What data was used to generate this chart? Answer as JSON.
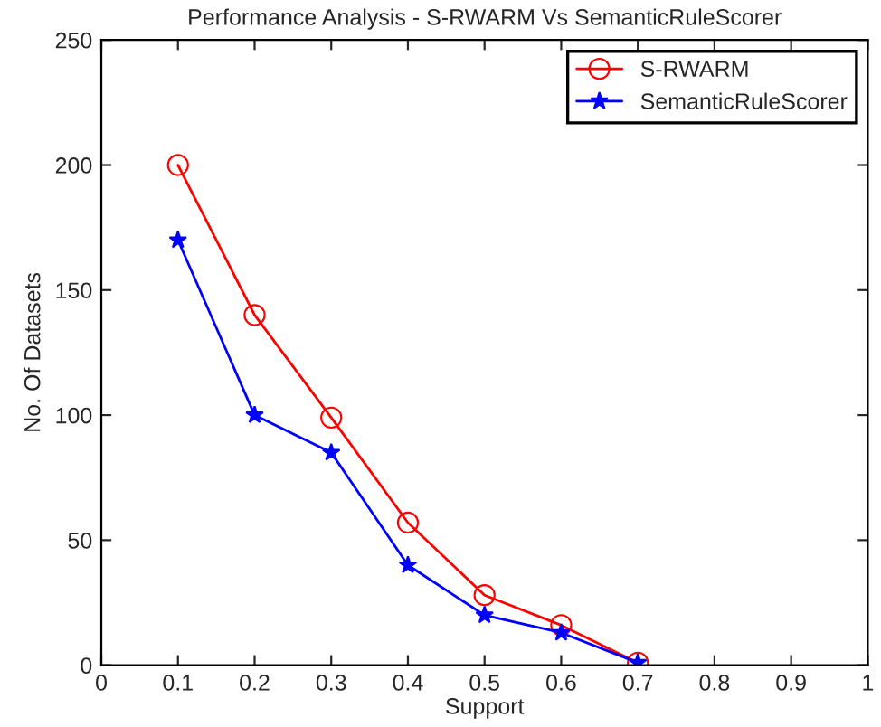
{
  "chart_data": {
    "type": "line",
    "title": "Performance Analysis - S-RWARM Vs SemanticRuleScorer",
    "xlabel": "Support",
    "ylabel": "No. Of Datasets",
    "x": [
      0.1,
      0.2,
      0.3,
      0.4,
      0.5,
      0.6,
      0.7
    ],
    "series": [
      {
        "name": "S-RWARM",
        "color": "#ff0000",
        "marker": "circle",
        "values": [
          200,
          140,
          99,
          57,
          28,
          16,
          1
        ]
      },
      {
        "name": "SemanticRuleScorer",
        "color": "#0000ff",
        "marker": "star",
        "values": [
          170,
          100,
          85,
          40,
          20,
          13,
          1
        ]
      }
    ],
    "xlim": [
      0,
      1
    ],
    "xticks": [
      0,
      0.1,
      0.2,
      0.3,
      0.4,
      0.5,
      0.6,
      0.7,
      0.8,
      0.9,
      1
    ],
    "ylim": [
      0,
      250
    ],
    "yticks": [
      0,
      50,
      100,
      150,
      200,
      250
    ],
    "grid": false,
    "legend": "top right",
    "line_style": "solid"
  }
}
